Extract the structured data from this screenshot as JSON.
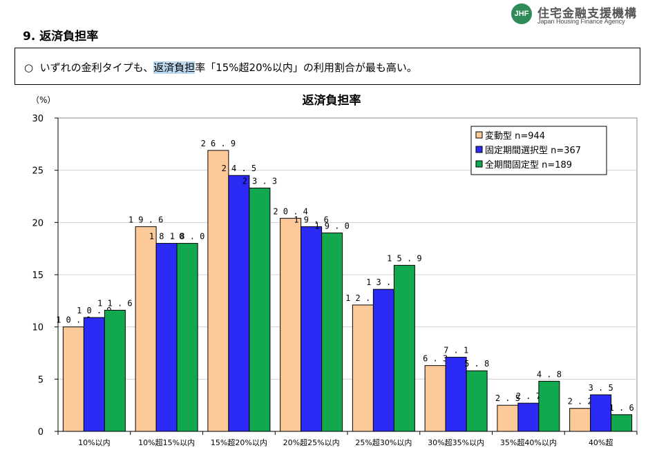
{
  "logo": {
    "name": "住宅金融支援機構",
    "subtitle": "Japan Housing Finance Agency",
    "mark": "JHF"
  },
  "page_title": "9. 返済負担率",
  "summary": {
    "bullet": "○",
    "text_before": "いずれの金利タイプも、",
    "highlight": "返済負担",
    "text_after": "率「15%超20%以内」の利用割合が最も高い。"
  },
  "chart_data": {
    "type": "bar",
    "title": "返済負担率",
    "ylabel": "（%）",
    "ylim": [
      0,
      30
    ],
    "yticks": [
      0,
      5,
      10,
      15,
      20,
      25,
      30
    ],
    "grid": true,
    "legend_position": "top-right",
    "categories": [
      "10%以内",
      "10%超15%以内",
      "15%超20%以内",
      "20%超25%以内",
      "25%超30%以内",
      "30%超35%以内",
      "35%超40%以内",
      "40%超"
    ],
    "series": [
      {
        "name": "変動型",
        "n_label": "n=944",
        "color": "#fcc998",
        "values": [
          10.0,
          19.6,
          26.9,
          20.4,
          12.1,
          6.3,
          2.5,
          2.2
        ],
        "labels": [
          "10.0",
          "19.6",
          "26.9",
          "20.4",
          "12.1",
          "6.3",
          "2.5",
          "2.2"
        ]
      },
      {
        "name": "固定期間選択型",
        "n_label": "n=367",
        "color": "#2b2bf5",
        "values": [
          10.9,
          18.0,
          24.5,
          19.6,
          13.6,
          7.1,
          2.7,
          3.5
        ],
        "labels": [
          "10.9",
          "18.0",
          "24.5",
          "19.6",
          "13.6",
          "7.1",
          "2.7",
          "3.5"
        ]
      },
      {
        "name": "全期間固定型",
        "n_label": "n=189",
        "color": "#12a94e",
        "values": [
          11.6,
          18.0,
          23.3,
          19.0,
          15.9,
          5.8,
          4.8,
          1.6
        ],
        "labels": [
          "11.6",
          "18.0",
          "23.3",
          "19.0",
          "15.9",
          "5.8",
          "4.8",
          "1.6"
        ]
      }
    ]
  }
}
